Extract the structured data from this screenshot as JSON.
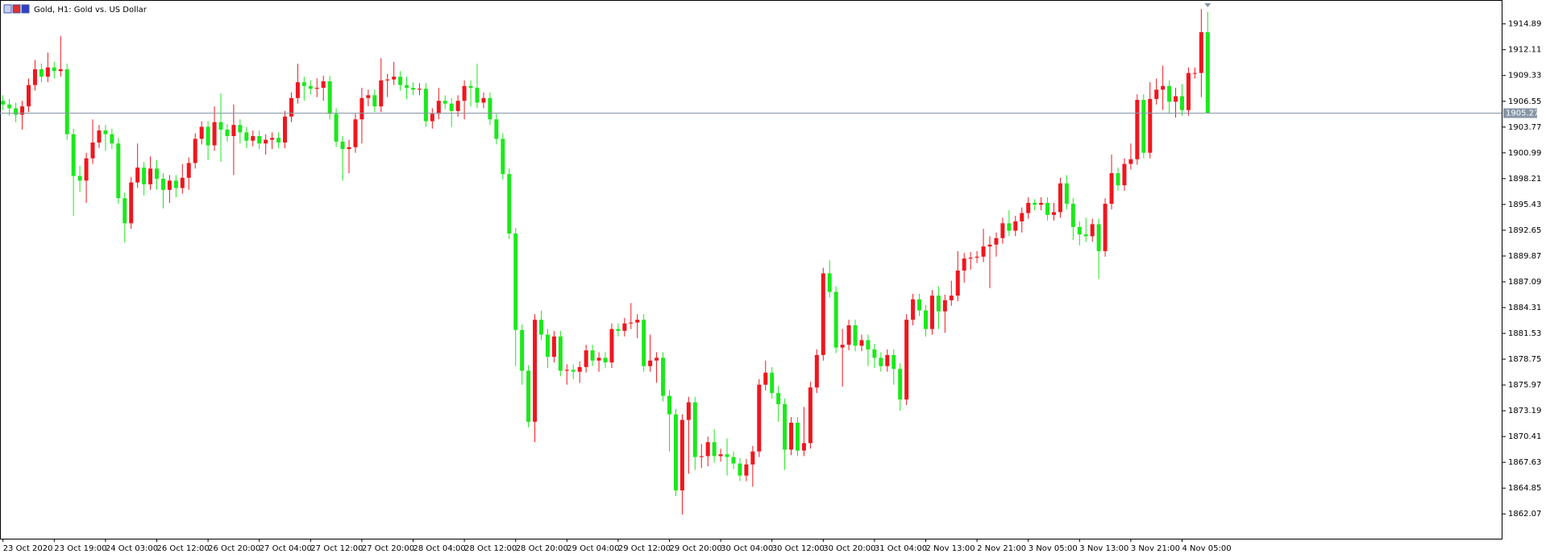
{
  "chart_data": {
    "type": "candlestick",
    "title": "Gold, H1:  Gold vs. US Dollar",
    "categories": [
      "23 Oct 2020",
      null,
      null,
      null,
      null,
      null,
      null,
      null,
      "23 Oct 19:00",
      null,
      null,
      null,
      null,
      null,
      null,
      null,
      "24 Oct 03:00",
      null,
      null,
      null,
      null,
      null,
      null,
      null,
      "26 Oct 12:00",
      null,
      null,
      null,
      null,
      null,
      null,
      null,
      "26 Oct 20:00",
      null,
      null,
      null,
      null,
      null,
      null,
      null,
      "27 Oct 04:00",
      null,
      null,
      null,
      null,
      null,
      null,
      null,
      "27 Oct 12:00",
      null,
      null,
      null,
      null,
      null,
      null,
      null,
      "27 Oct 20:00",
      null,
      null,
      null,
      null,
      null,
      null,
      null,
      "28 Oct 04:00",
      null,
      null,
      null,
      null,
      null,
      null,
      null,
      "28 Oct 12:00",
      null,
      null,
      null,
      null,
      null,
      null,
      null,
      "28 Oct 20:00",
      null,
      null,
      null,
      null,
      null,
      null,
      null,
      "29 Oct 04:00",
      null,
      null,
      null,
      null,
      null,
      null,
      null,
      "29 Oct 12:00",
      null,
      null,
      null,
      null,
      null,
      null,
      null,
      "29 Oct 20:00",
      null,
      null,
      null,
      null,
      null,
      null,
      null,
      "30 Oct 04:00",
      null,
      null,
      null,
      null,
      null,
      null,
      null,
      "30 Oct 12:00",
      null,
      null,
      null,
      null,
      null,
      null,
      null,
      "30 Oct 20:00",
      null,
      null,
      null,
      null,
      null,
      null,
      null,
      "31 Oct 04:00",
      null,
      null,
      null,
      null,
      null,
      null,
      null,
      "2 Nov 13:00",
      null,
      null,
      null,
      null,
      null,
      null,
      null,
      "2 Nov 21:00",
      null,
      null,
      null,
      null,
      null,
      null,
      null,
      "3 Nov 05:00",
      null,
      null,
      null,
      null,
      null,
      null,
      null,
      "3 Nov 13:00",
      null,
      null,
      null,
      null,
      null,
      null,
      null,
      "3 Nov 21:00",
      null,
      null,
      null,
      null,
      null,
      null,
      null,
      "4 Nov 05:00",
      null,
      null,
      null,
      null
    ],
    "open": [
      1906.6,
      1906.2,
      1905.8,
      1905.1,
      1906.0,
      1908.3,
      1910.0,
      1909.2,
      1910.2,
      1909.8,
      1910.0,
      1903.0,
      1898.5,
      1898.0,
      1900.4,
      1902.1,
      1903.4,
      1903.0,
      1902.0,
      1896.1,
      1893.4,
      1897.8,
      1899.4,
      1897.6,
      1899.3,
      1898.2,
      1897.0,
      1898.0,
      1897.2,
      1898.3,
      1899.9,
      1902.5,
      1903.8,
      1901.8,
      1904.3,
      1903.5,
      1902.8,
      1904.0,
      1903.2,
      1902.3,
      1902.8,
      1902.0,
      1902.4,
      1902.6,
      1902.1,
      1904.9,
      1906.9,
      1908.6,
      1908.2,
      1907.9,
      1908.0,
      1908.7,
      1905.2,
      1902.2,
      1901.4,
      1901.6,
      1904.6,
      1906.9,
      1907.2,
      1906.0,
      1908.8,
      1908.9,
      1909.2,
      1908.3,
      1908.0,
      1907.8,
      1907.9,
      1904.4,
      1905.2,
      1906.6,
      1906.3,
      1905.5,
      1906.6,
      1908.2,
      1908.0,
      1906.4,
      1906.9,
      1904.6,
      1902.5,
      1898.7,
      1892.3,
      1881.9,
      1877.5,
      1872.0,
      1883.0,
      1881.4,
      1879.0,
      1881.2,
      1877.5,
      1877.6,
      1877.4,
      1877.9,
      1879.7,
      1878.6,
      1878.9,
      1878.4,
      1882.0,
      1881.8,
      1882.6,
      1882.7,
      1883.0,
      1878.0,
      1878.6,
      1878.9,
      1874.8,
      1872.8,
      1864.6,
      1872.2,
      1874.1,
      1868.2,
      1868.3,
      1869.8,
      1868.3,
      1868.5,
      1868.2,
      1867.5,
      1866.2,
      1867.4,
      1868.8,
      1876.0,
      1877.3,
      1875.1,
      1873.9,
      1869.0,
      1871.9,
      1868.9,
      1869.7,
      1875.7,
      1879.2,
      1888.0,
      1886.0,
      1880.0,
      1880.3,
      1882.4,
      1880.2,
      1880.8,
      1879.8,
      1878.9,
      1878.0,
      1879.2,
      1877.7,
      1874.4,
      1883.0,
      1885.2,
      1884.0,
      1882.0,
      1885.6,
      1883.9,
      1885.1,
      1885.6,
      1888.3,
      1889.6,
      1889.7,
      1889.8,
      1890.9,
      1891.1,
      1891.8,
      1893.4,
      1892.6,
      1893.6,
      1894.5,
      1895.6,
      1895.4,
      1895.6,
      1894.3,
      1894.6,
      1897.7,
      1895.5,
      1893.0,
      1892.2,
      1892.0,
      1893.3,
      1890.4,
      1895.5,
      1898.8,
      1897.5,
      1899.8,
      1900.3,
      1906.7,
      1901.0,
      1906.8,
      1907.8,
      1908.2,
      1906.5,
      1907.1,
      1905.6,
      1909.6,
      1909.6,
      1914.0
    ],
    "high": [
      1907.2,
      1906.8,
      1906.4,
      1906.6,
      1909.0,
      1911.0,
      1910.6,
      1911.8,
      1910.8,
      1913.6,
      1910.6,
      1903.6,
      1899.6,
      1901.0,
      1904.6,
      1904.0,
      1904.0,
      1903.6,
      1902.6,
      1896.7,
      1898.4,
      1902.0,
      1900.0,
      1900.6,
      1900.2,
      1898.8,
      1898.6,
      1898.6,
      1899.8,
      1900.5,
      1903.1,
      1904.4,
      1904.4,
      1906.0,
      1907.4,
      1904.1,
      1906.2,
      1904.6,
      1903.8,
      1903.4,
      1903.4,
      1903.0,
      1903.2,
      1903.2,
      1905.5,
      1907.5,
      1910.6,
      1909.2,
      1908.8,
      1909.0,
      1909.3,
      1909.3,
      1905.8,
      1902.8,
      1902.4,
      1905.2,
      1908.0,
      1907.8,
      1907.8,
      1911.2,
      1909.5,
      1910.8,
      1909.8,
      1909.2,
      1908.6,
      1908.5,
      1908.5,
      1905.8,
      1908.0,
      1907.2,
      1906.9,
      1907.2,
      1908.8,
      1908.8,
      1910.6,
      1907.5,
      1907.5,
      1905.2,
      1903.1,
      1899.3,
      1892.9,
      1882.5,
      1878.1,
      1883.6,
      1884.0,
      1882.0,
      1881.8,
      1881.8,
      1878.2,
      1878.2,
      1878.5,
      1880.3,
      1880.3,
      1879.5,
      1879.5,
      1882.6,
      1882.6,
      1883.2,
      1884.8,
      1883.6,
      1883.6,
      1881.4,
      1879.5,
      1879.5,
      1875.4,
      1873.4,
      1872.8,
      1874.7,
      1874.7,
      1869.6,
      1870.4,
      1871.2,
      1869.1,
      1870.2,
      1868.8,
      1868.1,
      1868.0,
      1869.4,
      1876.6,
      1878.6,
      1877.9,
      1875.9,
      1874.5,
      1872.5,
      1872.5,
      1873.6,
      1876.3,
      1879.8,
      1888.6,
      1889.4,
      1886.6,
      1882.0,
      1883.0,
      1883.0,
      1881.4,
      1881.4,
      1880.4,
      1879.5,
      1879.8,
      1879.8,
      1878.3,
      1883.6,
      1885.8,
      1885.8,
      1884.6,
      1886.2,
      1886.6,
      1885.7,
      1887.2,
      1890.4,
      1890.2,
      1890.3,
      1890.4,
      1892.8,
      1892.0,
      1892.4,
      1894.0,
      1894.8,
      1894.2,
      1895.1,
      1896.2,
      1896.0,
      1896.2,
      1896.2,
      1895.6,
      1898.3,
      1898.6,
      1896.1,
      1893.6,
      1894.0,
      1893.9,
      1893.9,
      1896.1,
      1900.8,
      1899.4,
      1900.4,
      1902.0,
      1907.3,
      1907.3,
      1908.6,
      1909.0,
      1910.4,
      1908.8,
      1908.0,
      1908.4,
      1910.2,
      1910.2,
      1916.5,
      1916.2
    ],
    "low": [
      1905.6,
      1905.0,
      1904.3,
      1903.5,
      1905.4,
      1907.7,
      1908.6,
      1908.6,
      1909.0,
      1909.2,
      1902.4,
      1894.2,
      1896.8,
      1895.6,
      1899.8,
      1901.5,
      1901.2,
      1901.4,
      1895.5,
      1891.3,
      1892.8,
      1897.2,
      1896.4,
      1897.0,
      1897.0,
      1895.0,
      1895.6,
      1896.2,
      1896.6,
      1897.0,
      1899.3,
      1901.9,
      1900.2,
      1901.2,
      1900.0,
      1902.2,
      1898.6,
      1902.0,
      1901.5,
      1901.7,
      1901.4,
      1900.8,
      1901.4,
      1901.5,
      1901.5,
      1904.3,
      1906.3,
      1906.6,
      1907.3,
      1907.0,
      1906.6,
      1904.6,
      1901.6,
      1898.0,
      1898.8,
      1901.0,
      1902.0,
      1906.0,
      1905.4,
      1905.4,
      1907.0,
      1908.3,
      1907.7,
      1906.8,
      1907.2,
      1907.2,
      1903.8,
      1903.6,
      1904.6,
      1905.7,
      1903.8,
      1904.9,
      1904.6,
      1906.0,
      1905.8,
      1905.8,
      1904.0,
      1901.9,
      1898.1,
      1891.7,
      1878.0,
      1876.0,
      1871.4,
      1869.8,
      1880.8,
      1877.8,
      1878.4,
      1876.9,
      1876.0,
      1876.6,
      1876.2,
      1877.3,
      1878.0,
      1877.4,
      1877.8,
      1877.8,
      1881.2,
      1881.2,
      1882.0,
      1881.0,
      1877.4,
      1877.4,
      1876.2,
      1874.2,
      1868.8,
      1864.0,
      1862.0,
      1866.4,
      1866.8,
      1867.0,
      1867.2,
      1867.6,
      1867.7,
      1866.2,
      1866.9,
      1865.6,
      1865.6,
      1865.0,
      1868.2,
      1875.4,
      1874.5,
      1872.0,
      1866.8,
      1868.4,
      1868.3,
      1868.3,
      1869.1,
      1875.1,
      1878.6,
      1885.4,
      1879.4,
      1875.8,
      1879.7,
      1879.6,
      1879.6,
      1878.0,
      1877.8,
      1877.4,
      1877.4,
      1876.0,
      1873.2,
      1873.8,
      1882.4,
      1883.4,
      1881.2,
      1881.4,
      1882.0,
      1881.6,
      1884.5,
      1885.0,
      1887.0,
      1888.4,
      1889.1,
      1889.2,
      1886.4,
      1889.8,
      1891.2,
      1892.0,
      1892.0,
      1892.4,
      1893.9,
      1894.8,
      1894.8,
      1893.7,
      1893.7,
      1894.0,
      1894.9,
      1891.6,
      1891.0,
      1891.4,
      1891.4,
      1887.4,
      1889.8,
      1894.9,
      1896.9,
      1896.9,
      1899.2,
      1899.7,
      1900.4,
      1900.4,
      1906.2,
      1905.6,
      1905.2,
      1904.8,
      1905.0,
      1905.0,
      1909.0,
      1907.0,
      1905.27
    ],
    "close": [
      1906.2,
      1905.8,
      1905.1,
      1906.0,
      1908.3,
      1910.0,
      1909.2,
      1910.2,
      1909.8,
      1910.0,
      1903.0,
      1898.5,
      1898.0,
      1900.4,
      1902.1,
      1903.4,
      1903.0,
      1902.0,
      1896.1,
      1893.4,
      1897.8,
      1899.4,
      1897.6,
      1899.3,
      1898.2,
      1897.0,
      1898.0,
      1897.2,
      1898.3,
      1899.9,
      1902.5,
      1903.8,
      1901.8,
      1904.3,
      1903.5,
      1902.8,
      1904.0,
      1903.2,
      1902.3,
      1902.8,
      1902.0,
      1902.4,
      1902.6,
      1902.1,
      1904.9,
      1906.9,
      1908.6,
      1908.2,
      1907.9,
      1908.0,
      1908.7,
      1905.2,
      1902.2,
      1901.4,
      1901.6,
      1904.6,
      1906.9,
      1907.2,
      1906.0,
      1908.8,
      1908.9,
      1909.2,
      1908.3,
      1908.0,
      1907.8,
      1907.9,
      1904.4,
      1905.2,
      1906.6,
      1906.3,
      1905.5,
      1906.6,
      1908.2,
      1908.0,
      1906.4,
      1906.9,
      1904.6,
      1902.5,
      1898.7,
      1892.3,
      1881.9,
      1877.5,
      1872.0,
      1883.0,
      1881.4,
      1879.0,
      1881.2,
      1877.5,
      1877.6,
      1877.4,
      1877.9,
      1879.7,
      1878.6,
      1878.9,
      1878.4,
      1882.0,
      1881.8,
      1882.6,
      1882.7,
      1883.0,
      1878.0,
      1878.6,
      1878.9,
      1874.8,
      1872.8,
      1864.6,
      1872.2,
      1874.1,
      1868.2,
      1868.3,
      1869.8,
      1868.3,
      1868.5,
      1868.2,
      1867.5,
      1866.2,
      1867.4,
      1868.8,
      1876.0,
      1877.3,
      1875.1,
      1873.9,
      1869.0,
      1871.9,
      1868.9,
      1869.7,
      1875.7,
      1879.2,
      1888.0,
      1886.0,
      1880.0,
      1880.3,
      1882.4,
      1880.2,
      1880.8,
      1879.8,
      1878.9,
      1878.0,
      1879.2,
      1877.7,
      1874.4,
      1883.0,
      1885.2,
      1884.0,
      1882.0,
      1885.6,
      1883.9,
      1885.1,
      1885.6,
      1888.3,
      1889.6,
      1889.7,
      1889.8,
      1890.9,
      1891.1,
      1891.8,
      1893.4,
      1892.6,
      1893.6,
      1894.5,
      1895.6,
      1895.4,
      1895.6,
      1894.3,
      1894.6,
      1897.7,
      1895.5,
      1893.0,
      1892.2,
      1892.0,
      1893.3,
      1890.4,
      1895.5,
      1898.8,
      1897.5,
      1899.8,
      1900.3,
      1906.7,
      1901.0,
      1906.8,
      1907.8,
      1908.2,
      1906.5,
      1907.1,
      1905.6,
      1909.6,
      1909.6,
      1914.0,
      1905.27
    ],
    "up_color": "#f0161e",
    "down_color": "#1ce81c",
    "ylim": [
      1859.4,
      1917.12
    ],
    "yticks": [
      1862.07,
      1864.85,
      1867.63,
      1870.41,
      1873.19,
      1875.97,
      1878.75,
      1881.53,
      1884.31,
      1887.09,
      1889.87,
      1892.65,
      1895.43,
      1898.21,
      1900.99,
      1903.77,
      1906.55,
      1909.33,
      1912.11,
      1914.89
    ],
    "current_price": 1905.27,
    "current_price_color": "#8796a6",
    "grid": false
  }
}
